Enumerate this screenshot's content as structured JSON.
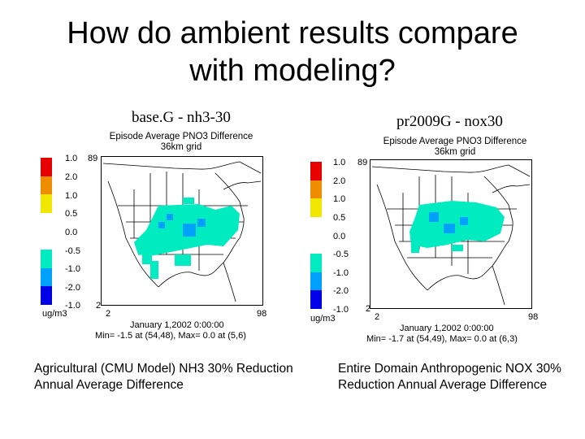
{
  "slide": {
    "title_line1": "How do ambient results compare",
    "title_line2": "with modeling?"
  },
  "legend": {
    "colors": [
      "#e60000",
      "#f08c00",
      "#f0e600",
      "#ffffff",
      "#ffffff",
      "#00ebc0",
      "#00a0ff",
      "#0000e6"
    ],
    "labels": [
      "1.0",
      "2.0",
      "1.0",
      "0.5",
      "0.0",
      "-0.5",
      "-1.0",
      "-2.0",
      "-1.0"
    ],
    "unit": "ug/m3"
  },
  "panels": [
    {
      "title": "base.G - nh3-30",
      "subtitle_line1": "Episode Average PNO3 Difference",
      "subtitle_line2": "36km grid",
      "x_min": "2",
      "x_max": "98",
      "y_max": "89",
      "y_min": "2",
      "date": "January 1,2002 0:00:00",
      "minmax": "Min= -1.5 at (54,48), Max= 0.0 at (5,6)",
      "caption": "Agricultural (CMU Model) NH3 30% Reduction Annual Average Difference"
    },
    {
      "title": "pr2009G - nox30",
      "subtitle_line1": "Episode Average PNO3 Difference",
      "subtitle_line2": "36km grid",
      "x_min": "2",
      "x_max": "98",
      "y_max": "89",
      "y_min": "2",
      "date": "January 1,2002 0:00:00",
      "minmax": "Min= -1.7 at (54,49), Max= 0.0 at (6,3)",
      "caption": "Entire Domain Anthropogenic NOX 30% Reduction Annual Average Difference"
    }
  ]
}
